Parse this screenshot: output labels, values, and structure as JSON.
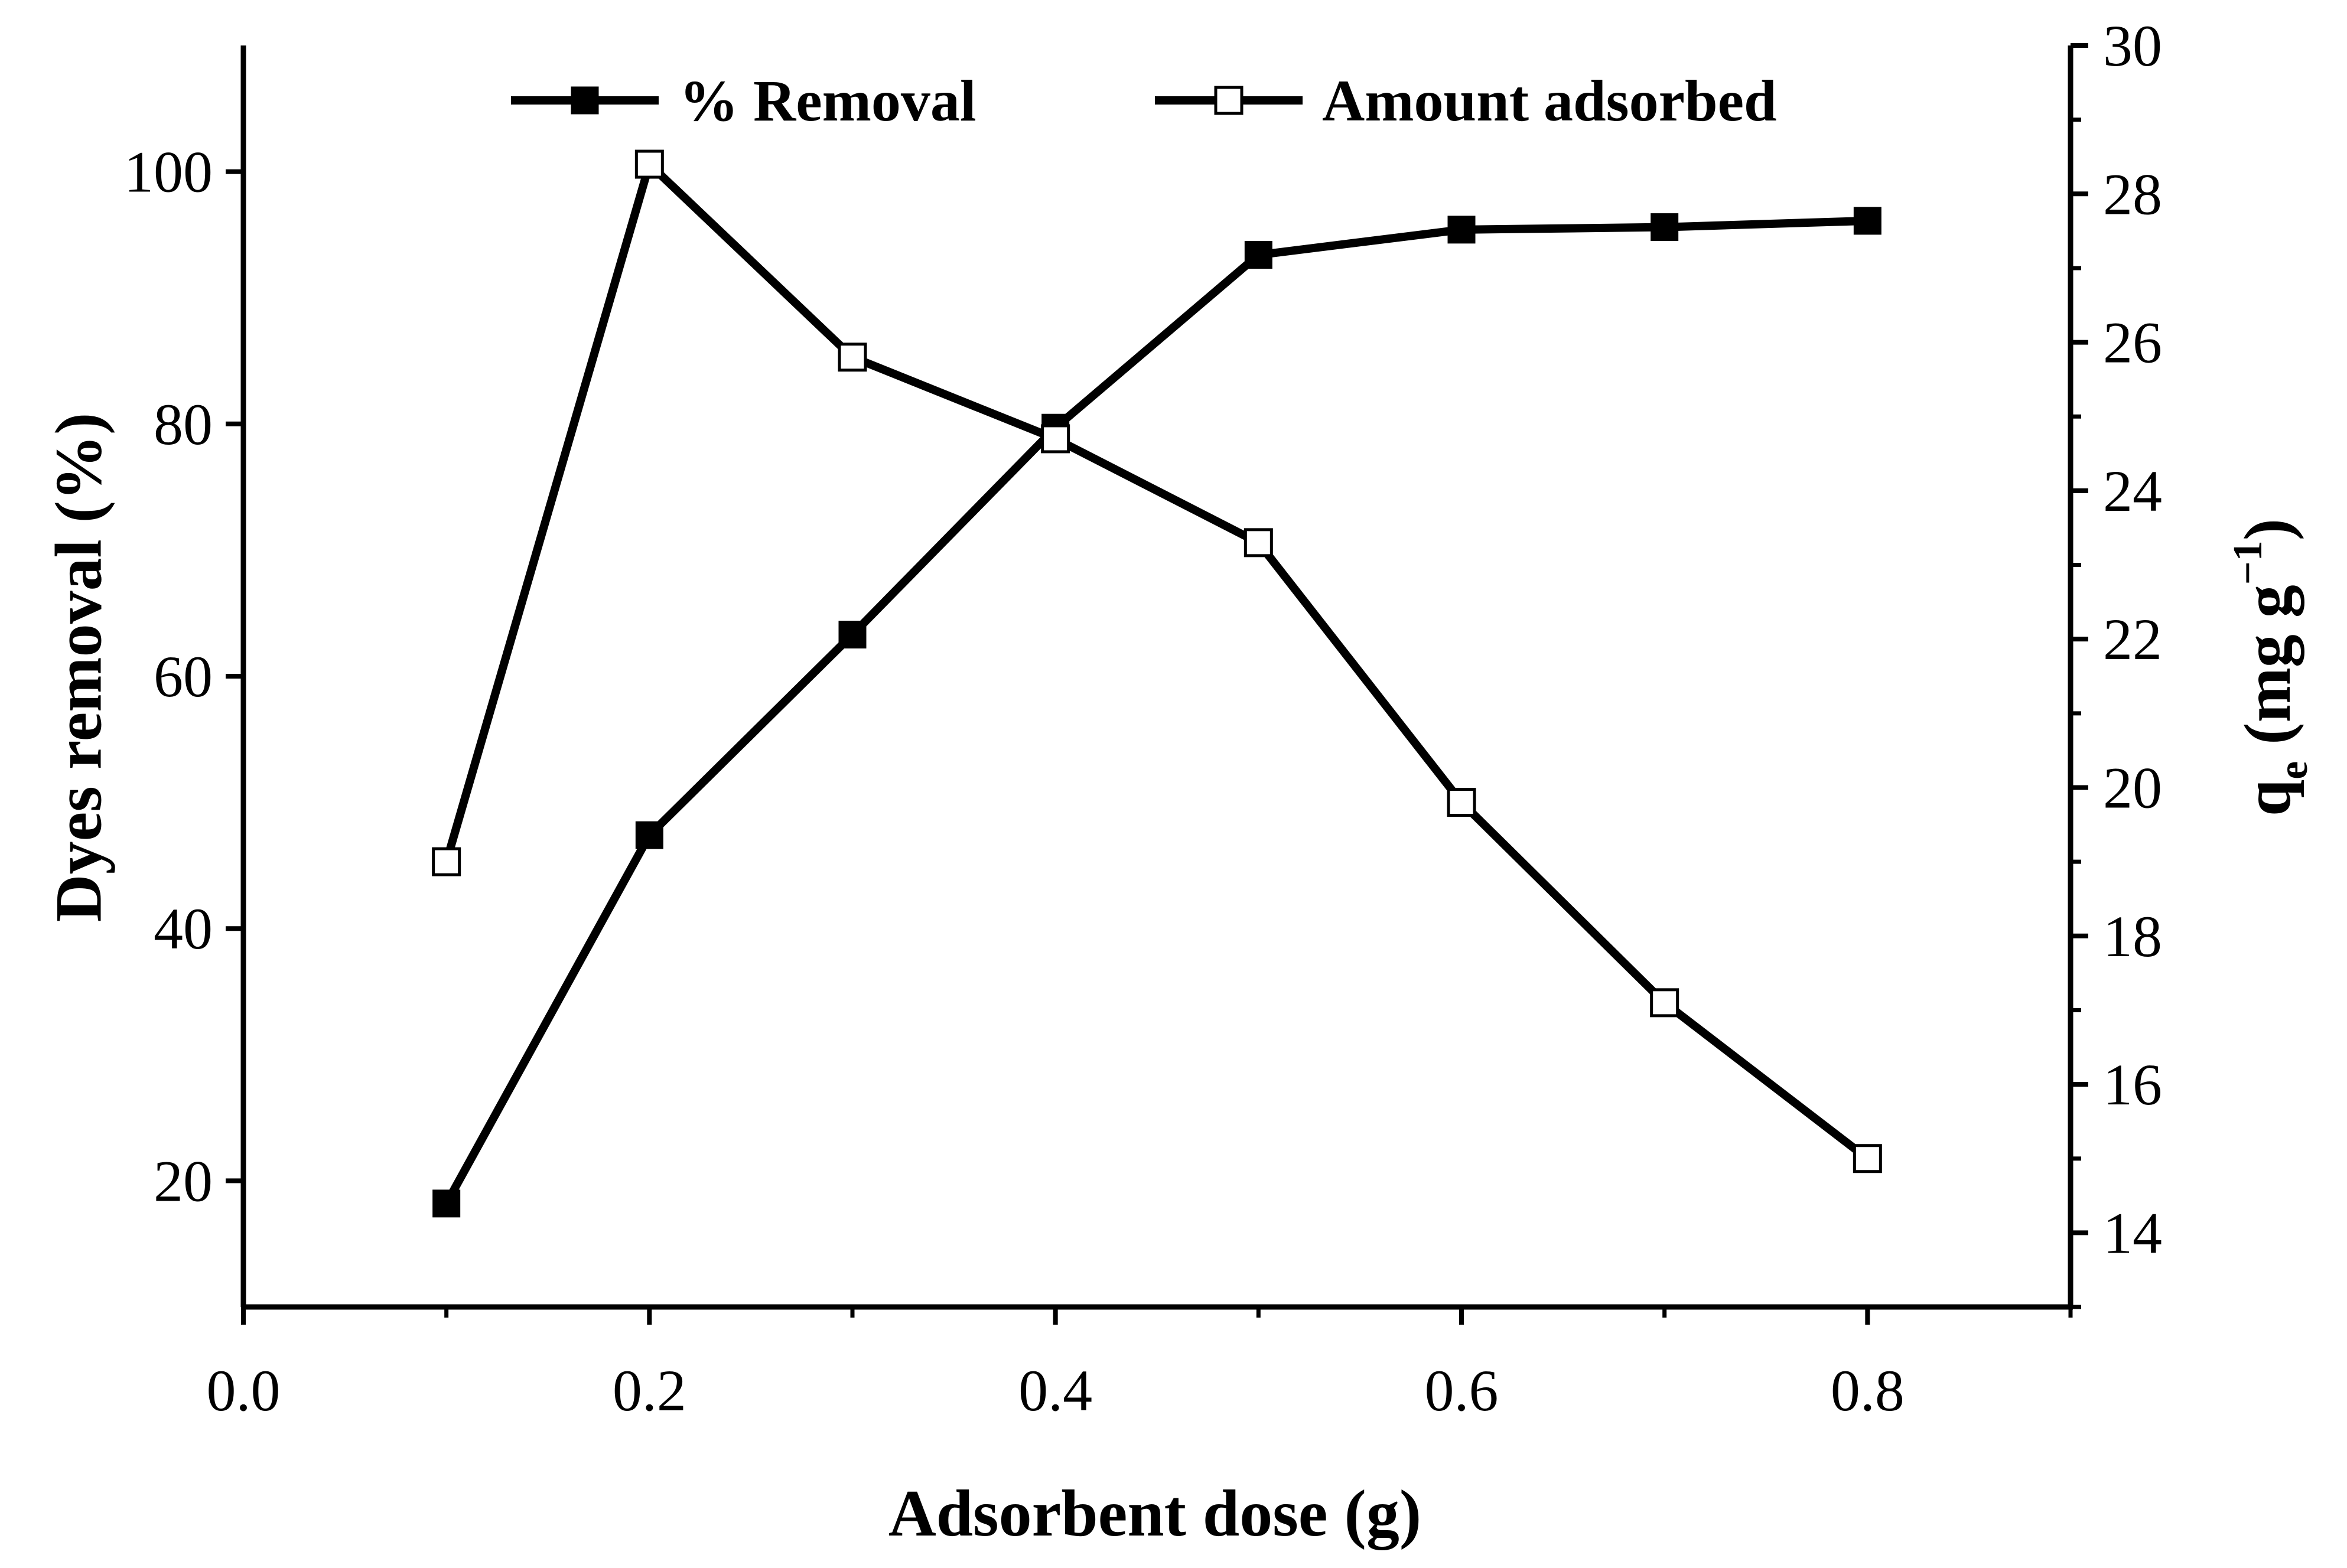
{
  "chart_data": {
    "type": "line",
    "xlabel": "Adsorbent dose (g)",
    "ylabel_left": "Dyes removal (%)",
    "ylabel_right": {
      "base": "q",
      "subscript": "e",
      "open": " (mg g",
      "superscript": "−1",
      "close": ")"
    },
    "xlim": [
      0.0,
      0.9
    ],
    "ylim_left": [
      10,
      110
    ],
    "ylim_right": [
      13,
      30
    ],
    "x_ticks": [
      0.0,
      0.2,
      0.4,
      0.6,
      0.8
    ],
    "x_tick_labels": [
      "0.0",
      "0.2",
      "0.4",
      "0.6",
      "0.8"
    ],
    "y_left_ticks": [
      20,
      40,
      60,
      80,
      100
    ],
    "y_left_tick_labels": [
      "20",
      "40",
      "60",
      "80",
      "100"
    ],
    "y_right_ticks": [
      14,
      16,
      18,
      20,
      22,
      24,
      26,
      28,
      30
    ],
    "y_right_tick_labels": [
      "14",
      "16",
      "18",
      "20",
      "22",
      "24",
      "26",
      "28",
      "30"
    ],
    "x": [
      0.1,
      0.2,
      0.3,
      0.4,
      0.5,
      0.6,
      0.7,
      0.8
    ],
    "series": [
      {
        "name": "% Removal",
        "axis": "left",
        "marker": "filled-square",
        "values": [
          18.2,
          47.4,
          63.3,
          79.7,
          93.4,
          95.4,
          95.6,
          96.1
        ]
      },
      {
        "name": "Amount adsorbed",
        "axis": "right",
        "marker": "open-square",
        "values": [
          19.0,
          28.4,
          25.8,
          24.7,
          23.3,
          19.8,
          17.1,
          15.0
        ]
      }
    ],
    "legend": {
      "placement": "top"
    }
  }
}
